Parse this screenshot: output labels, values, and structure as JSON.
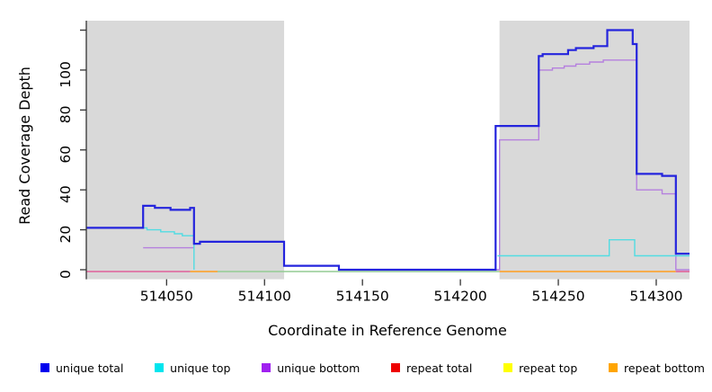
{
  "figure": {
    "xlabel": "Coordinate in Reference Genome",
    "ylabel": "Read Coverage Depth"
  },
  "chart_data": {
    "type": "line",
    "step": true,
    "title": "",
    "xlabel": "Coordinate in Reference Genome",
    "ylabel": "Read Coverage Depth",
    "xlim": [
      514009,
      514317
    ],
    "ylim": [
      0,
      120
    ],
    "x_ticks": [
      514050,
      514100,
      514150,
      514200,
      514250,
      514300
    ],
    "y_ticks": [
      0,
      20,
      40,
      60,
      80,
      100,
      120
    ],
    "y_tick_labels": [
      "0",
      "20",
      "40",
      "60",
      "80",
      "100",
      ""
    ],
    "grid": false,
    "legend_position": "bottom",
    "shade_color": "#d9d9d9",
    "shaded_regions": [
      {
        "from": 514009,
        "to": 514110
      },
      {
        "from": 514220,
        "to": 514317
      }
    ],
    "series": [
      {
        "name": "unique total",
        "color": "#2424dd",
        "legend_color": "#0000ee",
        "width": 2.2,
        "segments": [
          [
            [
              514009,
              21
            ],
            [
              514038,
              32
            ],
            [
              514044,
              31
            ],
            [
              514052,
              30
            ],
            [
              514062,
              31
            ],
            [
              514064,
              13
            ],
            [
              514067,
              14
            ],
            [
              514110,
              2
            ],
            [
              514138,
              0
            ],
            [
              514218,
              72
            ],
            [
              514240,
              107
            ],
            [
              514242,
              108
            ],
            [
              514255,
              110
            ],
            [
              514259,
              111
            ],
            [
              514268,
              112
            ],
            [
              514275,
              120
            ],
            [
              514288,
              113
            ],
            [
              514290,
              48
            ],
            [
              514303,
              47
            ],
            [
              514310,
              8
            ],
            [
              514317,
              8
            ]
          ]
        ]
      },
      {
        "name": "unique top",
        "color": "#52dce2",
        "legend_color": "#00e5ee",
        "width": 1.4,
        "segments": [
          [
            [
              514009,
              21
            ],
            [
              514040,
              20
            ],
            [
              514047,
              19
            ],
            [
              514054,
              18
            ],
            [
              514058,
              17
            ],
            [
              514064,
              0
            ]
          ],
          [
            [
              514219,
              7
            ],
            [
              514276,
              15
            ],
            [
              514289,
              7
            ],
            [
              514317,
              7
            ]
          ]
        ]
      },
      {
        "name": "unique bottom",
        "color": "#b580de",
        "legend_color": "#a020f0",
        "width": 1.4,
        "segments": [
          [
            [
              514038,
              11
            ],
            [
              514064,
              13
            ],
            [
              514067,
              14
            ],
            [
              514110,
              2
            ],
            [
              514138,
              0
            ],
            [
              514220,
              65
            ],
            [
              514240,
              100
            ],
            [
              514247,
              101
            ],
            [
              514253,
              102
            ],
            [
              514259,
              103
            ],
            [
              514266,
              104
            ],
            [
              514273,
              105
            ],
            [
              514290,
              40
            ],
            [
              514303,
              38
            ],
            [
              514310,
              0
            ],
            [
              514317,
              0
            ]
          ]
        ]
      },
      {
        "name": "repeat total",
        "color": "#ee0000",
        "legend_color": "#ee0000",
        "width": 1.4,
        "all_zero": true,
        "segments": []
      },
      {
        "name": "repeat top",
        "color": "#ffff00",
        "legend_color": "#ffff00",
        "width": 1.4,
        "all_zero": true,
        "segments": []
      },
      {
        "name": "repeat bottom",
        "color": "#ffa500",
        "legend_color": "#ffa500",
        "width": 1.4,
        "all_zero": true,
        "segments": []
      }
    ],
    "zero_line_segments": [
      {
        "from": 514009,
        "to": 514062,
        "color": "#e0609a"
      },
      {
        "from": 514062,
        "to": 514076,
        "color": "#ff9d1e"
      },
      {
        "from": 514076,
        "to": 514220,
        "color": "#94cc94"
      },
      {
        "from": 514220,
        "to": 514310,
        "color": "#ff9d1e"
      },
      {
        "from": 514310,
        "to": 514317,
        "color": "#e0609a"
      }
    ],
    "legend": [
      {
        "label": "unique total",
        "color": "#0000ee"
      },
      {
        "label": "unique top",
        "color": "#00e5ee"
      },
      {
        "label": "unique bottom",
        "color": "#a020f0"
      },
      {
        "label": "repeat total",
        "color": "#ee0000"
      },
      {
        "label": "repeat top",
        "color": "#ffff00"
      },
      {
        "label": "repeat bottom",
        "color": "#ffa500"
      }
    ]
  }
}
